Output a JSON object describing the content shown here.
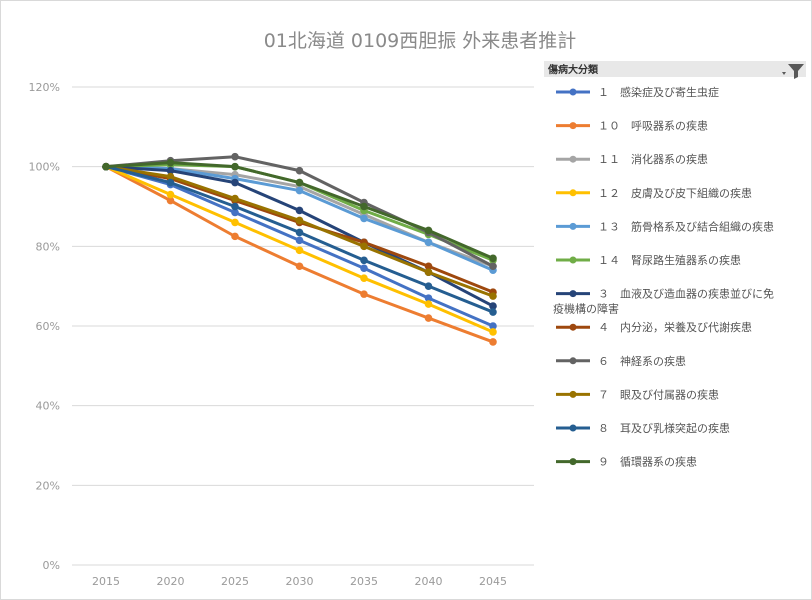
{
  "chart_data": {
    "type": "line",
    "title": "01北海道 0109西胆振 外来患者推計",
    "x": [
      "2015",
      "2020",
      "2025",
      "2030",
      "2035",
      "2040",
      "2045"
    ],
    "ylim": [
      0,
      120
    ],
    "y_ticks": [
      "0%",
      "20%",
      "40%",
      "60%",
      "80%",
      "100%",
      "120%"
    ],
    "grid": true,
    "legend_position": "right",
    "legend_header": "傷病大分類",
    "filter_icon": "filter-icon",
    "series": [
      {
        "name": "１　感染症及び寄生虫症",
        "color": "#4472c4",
        "values": [
          100,
          95.5,
          88.5,
          81.5,
          74.5,
          67,
          60
        ]
      },
      {
        "name": "１０　呼吸器系の疾患",
        "color": "#ed7d31",
        "values": [
          100,
          91.5,
          82.5,
          75,
          68,
          62,
          56
        ]
      },
      {
        "name": "１１　消化器系の疾患",
        "color": "#a5a5a5",
        "values": [
          100,
          99.5,
          98,
          95,
          88,
          81,
          75
        ]
      },
      {
        "name": "１２　皮膚及び皮下組織の疾患",
        "color": "#ffc000",
        "values": [
          100,
          93,
          86,
          79,
          72,
          65.5,
          58.5
        ]
      },
      {
        "name": "１３　筋骨格系及び結合組織の疾患",
        "color": "#5b9bd5",
        "values": [
          100,
          99.5,
          97,
          94,
          87,
          81,
          74
        ]
      },
      {
        "name": "１４　腎尿路生殖器系の疾患",
        "color": "#70ad47",
        "values": [
          100,
          100.5,
          100,
          96,
          89,
          83,
          76.5
        ]
      },
      {
        "name": "３　血液及び造血器の疾患並びに免疫機構の障害",
        "color": "#264478",
        "values": [
          100,
          99,
          96,
          89,
          81,
          73.5,
          65
        ]
      },
      {
        "name": "４　内分泌，栄養及び代謝疾患",
        "color": "#9e480e",
        "values": [
          100,
          97,
          91.5,
          86,
          81,
          75,
          68.5
        ]
      },
      {
        "name": "６　神経系の疾患",
        "color": "#636363",
        "values": [
          100,
          101.5,
          102.5,
          99,
          91,
          83.5,
          75
        ]
      },
      {
        "name": "７　眼及び付属器の疾患",
        "color": "#997300",
        "values": [
          100,
          97.5,
          92,
          86.5,
          80,
          73.5,
          67.5
        ]
      },
      {
        "name": "８　耳及び乳様突起の疾患",
        "color": "#255e91",
        "values": [
          100,
          96,
          90,
          83.5,
          76.5,
          70,
          63.5
        ]
      },
      {
        "name": "９　循環器系の疾患",
        "color": "#43682b",
        "values": [
          100,
          101,
          100,
          96,
          90,
          84,
          77
        ]
      }
    ]
  }
}
